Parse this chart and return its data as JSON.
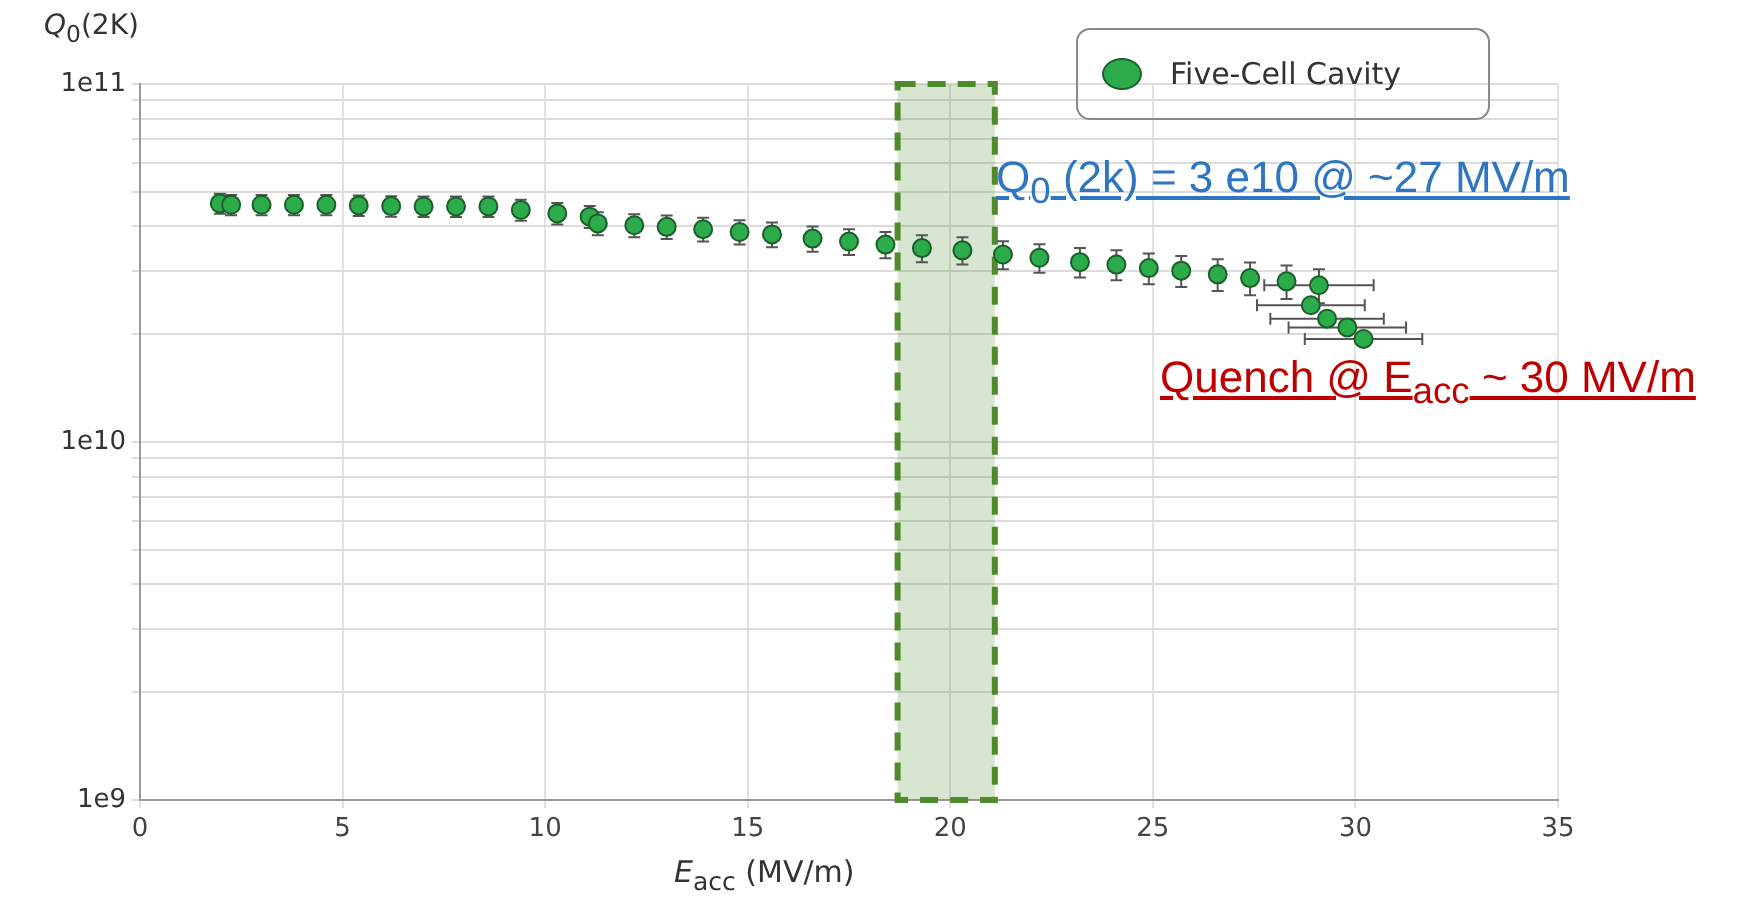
{
  "chart_data": {
    "type": "scatter",
    "xlabel": "E$_{acc}$ (MV/m)",
    "ylabel": "Q$_{0}$(2K)",
    "annotations": [
      "Q$_{0}$ (2k) = 3 e10 @ ~27 MV/m",
      "Quench @ E$_{acc}$ ~ 30 MV/m"
    ],
    "series": [
      {
        "name": "Five-Cell Cavity",
        "color": "#2bab4a",
        "x": [
          1.97,
          2.25,
          3.0,
          3.8,
          4.6,
          5.4,
          6.2,
          7.0,
          7.8,
          8.6,
          9.4,
          10.3,
          11.1,
          11.3,
          12.2,
          13.0,
          13.9,
          14.8,
          15.6,
          16.6,
          17.5,
          18.4,
          19.3,
          20.3,
          21.3,
          22.2,
          23.2,
          24.1,
          24.9,
          25.7,
          26.6,
          27.4,
          28.3,
          29.1,
          28.9,
          29.3,
          29.8,
          30.2
        ],
        "values": [
          46400000000.0,
          46000000000.0,
          46000000000.0,
          46000000000.0,
          46000000000.0,
          45800000000.0,
          45600000000.0,
          45500000000.0,
          45500000000.0,
          45500000000.0,
          44500000000.0,
          43500000000.0,
          42600000000.0,
          40800000000.0,
          40300000000.0,
          39900000000.0,
          39300000000.0,
          38600000000.0,
          38000000000.0,
          37000000000.0,
          36300000000.0,
          35600000000.0,
          34800000000.0,
          34300000000.0,
          33400000000.0,
          32700000000.0,
          31800000000.0,
          31300000000.0,
          30600000000.0,
          30100000000.0,
          29400000000.0,
          28700000000.0,
          28100000000.0,
          27400000000.0,
          24100000000.0,
          22100000000.0,
          20900000000.0,
          19400000000.0
        ],
        "errors": [
          3000000000.0,
          3000000000.0,
          3000000000.0,
          3000000000.0,
          3000000000.0,
          3000000000.0,
          3000000000.0,
          3000000000.0,
          3000000000.0,
          3000000000.0,
          3000000000.0,
          3000000000.0,
          3000000000.0,
          3000000000.0,
          3000000000.0,
          3000000000.0,
          3000000000.0,
          3000000000.0,
          3000000000.0,
          3000000000.0,
          3000000000.0,
          3000000000.0,
          3000000000.0,
          3000000000.0,
          3000000000.0,
          3000000000.0,
          3000000000.0,
          3000000000.0,
          3000000000.0,
          3000000000.0,
          3000000000.0,
          3000000000.0,
          3000000000.0,
          3000000000.0,
          null,
          null,
          null,
          null
        ],
        "xerrors": [
          null,
          null,
          null,
          null,
          null,
          null,
          null,
          null,
          null,
          null,
          null,
          null,
          null,
          null,
          null,
          null,
          null,
          null,
          null,
          null,
          null,
          null,
          null,
          null,
          null,
          null,
          null,
          null,
          null,
          null,
          null,
          null,
          null,
          1.35,
          1.33,
          1.4,
          1.45,
          1.45
        ]
      }
    ],
    "xlim": [
      0,
      35
    ],
    "xticks": [
      0,
      5,
      10,
      15,
      20,
      25,
      30,
      35
    ],
    "ylim": [
      1000000000.0,
      100000000000.0
    ],
    "log": true,
    "yticks": [
      {
        "value": 1000000000.0,
        "label": "1e9"
      },
      {
        "value": 2000000000.0,
        "label": null
      },
      {
        "value": 3000000000.0,
        "label": null
      },
      {
        "value": 4000000000.0,
        "label": null
      },
      {
        "value": 5000000000.0,
        "label": null
      },
      {
        "value": 6000000000.0,
        "label": null
      },
      {
        "value": 7000000000.0,
        "label": null
      },
      {
        "value": 8000000000.0,
        "label": null
      },
      {
        "value": 9000000000.0,
        "label": null
      },
      {
        "value": 10000000000.0,
        "label": "1e10"
      },
      {
        "value": 20000000000.0,
        "label": null
      },
      {
        "value": 30000000000.0,
        "label": null
      },
      {
        "value": 40000000000.0,
        "label": null
      },
      {
        "value": 50000000000.0,
        "label": null
      },
      {
        "value": 60000000000.0,
        "label": null
      },
      {
        "value": 70000000000.0,
        "label": null
      },
      {
        "value": 80000000000.0,
        "label": null
      },
      {
        "value": 90000000000.0,
        "label": null
      },
      {
        "value": 100000000000.0,
        "label": "1e11"
      }
    ],
    "bands": [
      {
        "axis": "x",
        "from": 18.7,
        "to": 21.1,
        "color": "#4f8a2b"
      }
    ],
    "grid": true,
    "legend": "top right",
    "marker": "circle"
  }
}
